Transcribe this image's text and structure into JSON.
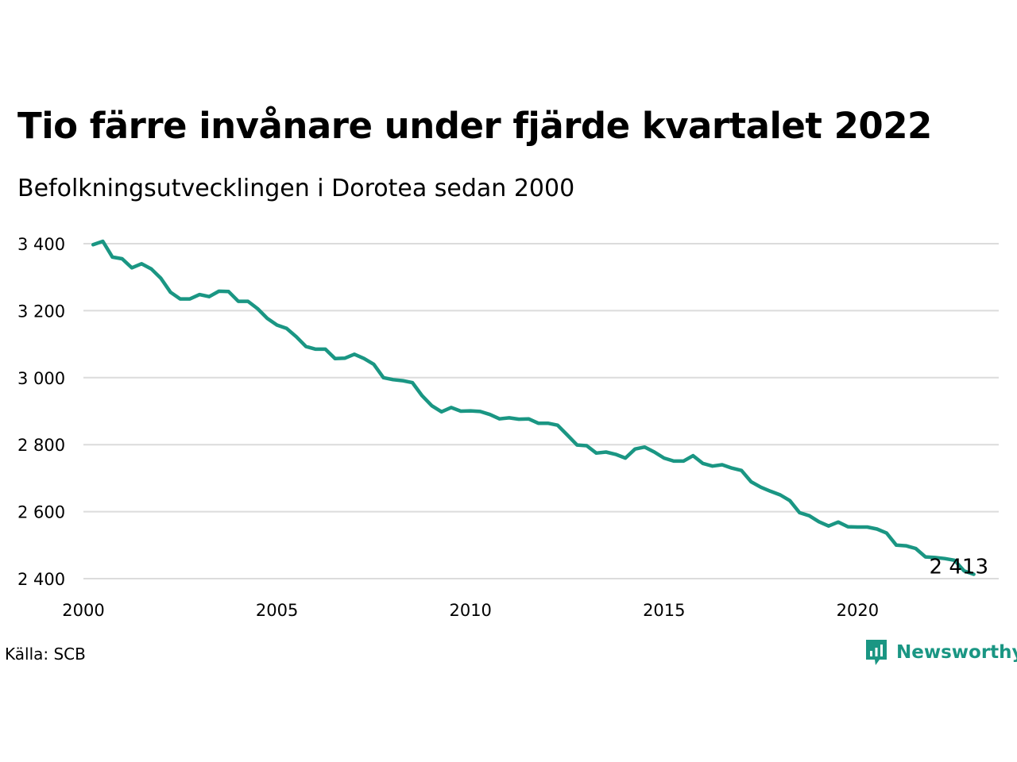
{
  "colors": {
    "line": "#1a9683",
    "grid": "#dcdcdc",
    "text": "#000000",
    "brand": "#1a9683"
  },
  "title": "Tio färre invånare under fjärde kvartalet 2022",
  "subtitle": "Befolkningsutvecklingen i Dorotea sedan 2000",
  "source": "Källa: SCB",
  "brand": {
    "name": "Newsworthy",
    "icon": "bar-chart-speech-bubble-icon"
  },
  "chart_data": {
    "type": "line",
    "title": "Tio färre invånare under fjärde kvartalet 2022",
    "subtitle": "Befolkningsutvecklingen i Dorotea sedan 2000",
    "xlabel": "",
    "ylabel": "",
    "xlim": [
      2000,
      2023.5
    ],
    "ylim": [
      2400,
      3400
    ],
    "x_ticks": [
      2000,
      2005,
      2010,
      2015,
      2020
    ],
    "y_ticks": [
      2400,
      2600,
      2800,
      3000,
      3200,
      3400
    ],
    "y_tick_labels": [
      "2 400",
      "2 600",
      "2 800",
      "3 000",
      "3 200",
      "3 400"
    ],
    "grid": "horizontal",
    "legend": "none",
    "end_label": "2 413",
    "x": [
      2000.25,
      2000.5,
      2000.75,
      2001.0,
      2001.25,
      2001.5,
      2001.75,
      2002.0,
      2002.25,
      2002.5,
      2002.75,
      2003.0,
      2003.25,
      2003.5,
      2003.75,
      2004.0,
      2004.25,
      2004.5,
      2004.75,
      2005.0,
      2005.25,
      2005.5,
      2005.75,
      2006.0,
      2006.25,
      2006.5,
      2006.75,
      2007.0,
      2007.25,
      2007.5,
      2007.75,
      2008.0,
      2008.25,
      2008.5,
      2008.75,
      2009.0,
      2009.25,
      2009.5,
      2009.75,
      2010.0,
      2010.25,
      2010.5,
      2010.75,
      2011.0,
      2011.25,
      2011.5,
      2011.75,
      2012.0,
      2012.25,
      2012.5,
      2012.75,
      2013.0,
      2013.25,
      2013.5,
      2013.75,
      2014.0,
      2014.25,
      2014.5,
      2014.75,
      2015.0,
      2015.25,
      2015.5,
      2015.75,
      2016.0,
      2016.25,
      2016.5,
      2016.75,
      2017.0,
      2017.25,
      2017.5,
      2017.75,
      2018.0,
      2018.25,
      2018.5,
      2018.75,
      2019.0,
      2019.25,
      2019.5,
      2019.75,
      2020.0,
      2020.25,
      2020.5,
      2020.75,
      2021.0,
      2021.25,
      2021.5,
      2021.75,
      2022.0,
      2022.25,
      2022.5,
      2022.75,
      2023.0
    ],
    "series": [
      {
        "values": [
          3397,
          3407,
          3360,
          3355,
          3328,
          3340,
          3325,
          3297,
          3255,
          3235,
          3235,
          3248,
          3242,
          3258,
          3257,
          3228,
          3228,
          3206,
          3177,
          3157,
          3147,
          3122,
          3093,
          3085,
          3085,
          3057,
          3058,
          3070,
          3057,
          3040,
          3000,
          2994,
          2991,
          2985,
          2946,
          2916,
          2898,
          2911,
          2900,
          2901,
          2899,
          2890,
          2877,
          2880,
          2876,
          2877,
          2864,
          2864,
          2858,
          2829,
          2799,
          2797,
          2775,
          2778,
          2771,
          2760,
          2787,
          2793,
          2778,
          2760,
          2751,
          2751,
          2767,
          2744,
          2736,
          2740,
          2730,
          2723,
          2689,
          2673,
          2661,
          2650,
          2633,
          2597,
          2588,
          2570,
          2557,
          2569,
          2555,
          2554,
          2554,
          2548,
          2536,
          2500,
          2498,
          2490,
          2465,
          2463,
          2460,
          2455,
          2423,
          2413
        ]
      }
    ]
  }
}
